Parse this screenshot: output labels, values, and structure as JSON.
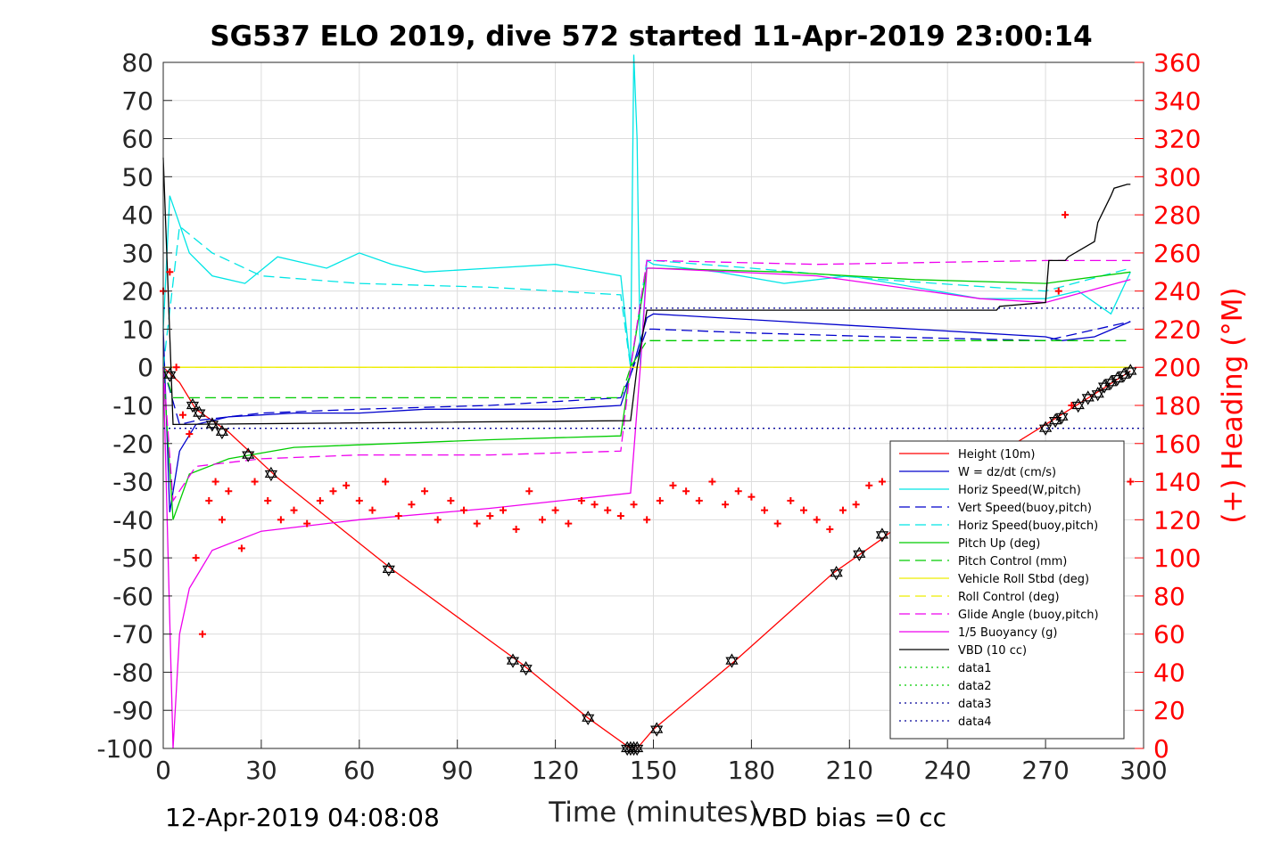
{
  "chart_data": {
    "type": "line",
    "title": "SG537 ELO 2019, dive 572 started 11-Apr-2019 23:00:14",
    "xlabel": "Time (minutes)",
    "ylabel_right": "(+) Heading (°M)",
    "xlim": [
      0,
      300
    ],
    "ylim": [
      -100,
      80
    ],
    "ylim_right": [
      0,
      360
    ],
    "xticks": [
      0,
      30,
      60,
      90,
      120,
      150,
      180,
      210,
      240,
      270,
      300
    ],
    "yticks": [
      -100,
      -90,
      -80,
      -70,
      -60,
      -50,
      -40,
      -30,
      -20,
      -10,
      0,
      10,
      20,
      30,
      40,
      50,
      60,
      70,
      80
    ],
    "yticks_right": [
      0,
      20,
      40,
      60,
      80,
      100,
      120,
      140,
      160,
      180,
      200,
      220,
      240,
      260,
      280,
      300,
      320,
      340,
      360
    ],
    "grid": true,
    "legend_position": "bottom-right",
    "footer_left": "12-Apr-2019 04:08:08",
    "footer_right": "VBD bias =0 cc",
    "colors": {
      "right_axis": "#ff0000",
      "heading": "#ff0000"
    },
    "series": [
      {
        "name": "Height (10m)",
        "color": "#ff0000",
        "style": "solid",
        "x": [
          0,
          5,
          10,
          20,
          35,
          70,
          110,
          130,
          143,
          145,
          150,
          175,
          205,
          220,
          240,
          255,
          270,
          285,
          296
        ],
        "y": [
          0,
          -4,
          -11,
          -17,
          -29,
          -53,
          -78,
          -92,
          -100,
          -100,
          -95,
          -77,
          -54,
          -45,
          -31,
          -23,
          -15,
          -7,
          -1
        ]
      },
      {
        "name": "W = dz/dt (cm/s)",
        "color": "#0000cc",
        "style": "solid",
        "x": [
          0,
          2,
          5,
          10,
          20,
          40,
          60,
          80,
          100,
          120,
          140,
          143,
          148,
          150,
          170,
          190,
          210,
          230,
          250,
          270,
          275,
          285,
          296
        ],
        "y": [
          10,
          -38,
          -22,
          -15,
          -13,
          -12,
          -12,
          -11,
          -11,
          -11,
          -10,
          -2,
          13,
          14,
          13,
          12,
          11,
          10,
          9,
          8,
          7,
          8,
          12
        ]
      },
      {
        "name": "Horiz Speed(W,pitch)",
        "color": "#00e5e5",
        "style": "solid",
        "x": [
          0,
          2,
          4,
          8,
          15,
          25,
          35,
          50,
          60,
          70,
          80,
          100,
          120,
          140,
          143,
          144,
          145,
          146,
          148,
          150,
          170,
          190,
          210,
          230,
          250,
          270,
          280,
          290,
          296
        ],
        "y": [
          10,
          45,
          40,
          30,
          24,
          22,
          29,
          26,
          30,
          27,
          25,
          26,
          27,
          24,
          0,
          82,
          60,
          0,
          28,
          27,
          25,
          22,
          24,
          21,
          18,
          18,
          20,
          14,
          25
        ]
      },
      {
        "name": "Vert Speed(buoy,pitch)",
        "color": "#0000cc",
        "style": "dashed",
        "x": [
          0,
          5,
          10,
          30,
          60,
          100,
          140,
          143,
          148,
          150,
          180,
          220,
          270,
          296
        ],
        "y": [
          0,
          -15,
          -14,
          -12,
          -11,
          -10,
          -8,
          -2,
          10,
          10,
          9,
          8,
          7,
          12
        ]
      },
      {
        "name": "Horiz Speed(buoy,pitch)",
        "color": "#00e5e5",
        "style": "dashed",
        "x": [
          0,
          5,
          15,
          30,
          60,
          100,
          140,
          143,
          148,
          150,
          180,
          220,
          270,
          296
        ],
        "y": [
          0,
          37,
          30,
          24,
          22,
          21,
          19,
          0,
          28,
          28,
          26,
          23,
          20,
          26
        ]
      },
      {
        "name": "Pitch Up (deg)",
        "color": "#00cc00",
        "style": "solid",
        "x": [
          0,
          3,
          8,
          20,
          40,
          70,
          100,
          140,
          143,
          148,
          150,
          190,
          230,
          270,
          296
        ],
        "y": [
          0,
          -40,
          -28,
          -24,
          -21,
          -20,
          -19,
          -18,
          0,
          26,
          26,
          25,
          23,
          22,
          25
        ]
      },
      {
        "name": "Pitch Control (mm)",
        "color": "#00cc00",
        "style": "dashed",
        "x": [
          0,
          3,
          10,
          140,
          143,
          148,
          150,
          296
        ],
        "y": [
          0,
          -8,
          -8,
          -8,
          0,
          7,
          7,
          7
        ]
      },
      {
        "name": "Vehicle Roll Stbd (deg)",
        "color": "#eeee00",
        "style": "solid",
        "x": [
          0,
          5,
          10,
          30,
          60,
          100,
          140,
          143,
          148,
          150,
          200,
          250,
          296
        ],
        "y": [
          0,
          0,
          0,
          0,
          0,
          0,
          0,
          0,
          0,
          0,
          0,
          0,
          0
        ]
      },
      {
        "name": "Roll Control (deg)",
        "color": "#eeee00",
        "style": "dashed",
        "x": [
          0,
          296
        ],
        "y": [
          0,
          0
        ]
      },
      {
        "name": "Glide Angle (buoy,pitch)",
        "color": "#ee00ee",
        "style": "dashed",
        "x": [
          0,
          3,
          10,
          30,
          60,
          100,
          140,
          143,
          148,
          150,
          200,
          270,
          296
        ],
        "y": [
          0,
          -35,
          -26,
          -24,
          -23,
          -23,
          -22,
          0,
          28,
          28,
          27,
          28,
          28
        ]
      },
      {
        "name": "1/5 Buoyancy (g)",
        "color": "#ee00ee",
        "style": "solid",
        "x": [
          0,
          3,
          5,
          8,
          15,
          30,
          60,
          100,
          143,
          146,
          148,
          150,
          200,
          250,
          270,
          296
        ],
        "y": [
          0,
          -100,
          -70,
          -58,
          -48,
          -43,
          -40,
          -37,
          -33,
          0,
          26,
          26,
          24,
          18,
          17,
          23
        ]
      },
      {
        "name": "VBD (10 cc)",
        "color": "#000000",
        "style": "solid",
        "x": [
          0,
          3,
          143,
          145,
          148,
          150,
          255,
          256,
          270,
          271,
          276,
          277,
          285,
          286,
          290,
          291,
          295,
          296
        ],
        "y": [
          55,
          -15,
          -14,
          0,
          15,
          15,
          15,
          16,
          17,
          28,
          28,
          29,
          33,
          38,
          45,
          47,
          48,
          48
        ]
      },
      {
        "name": "data1",
        "color": "#00cc00",
        "style": "dotted",
        "x": [],
        "y": []
      },
      {
        "name": "data2",
        "color": "#00cc00",
        "style": "dotted",
        "x": [],
        "y": []
      },
      {
        "name": "data3",
        "color": "#000099",
        "style": "dotted",
        "x": [
          0,
          300
        ],
        "y": [
          -16,
          -16
        ]
      },
      {
        "name": "data4",
        "color": "#000099",
        "style": "dotted",
        "x": [
          0,
          300
        ],
        "y": [
          15.5,
          15.5
        ]
      }
    ],
    "heading_series": {
      "color": "#ff0000",
      "marker": "+",
      "axis": "right",
      "x": [
        0,
        2,
        4,
        6,
        8,
        10,
        12,
        14,
        16,
        18,
        20,
        24,
        28,
        32,
        36,
        40,
        44,
        48,
        52,
        56,
        60,
        64,
        68,
        72,
        76,
        80,
        84,
        88,
        92,
        96,
        100,
        104,
        108,
        112,
        116,
        120,
        124,
        128,
        132,
        136,
        140,
        144,
        148,
        152,
        156,
        160,
        164,
        168,
        172,
        176,
        180,
        184,
        188,
        192,
        196,
        200,
        204,
        208,
        212,
        216,
        220,
        224,
        228,
        232,
        236,
        240,
        244,
        248,
        252,
        256,
        260,
        264,
        268,
        272,
        274,
        276,
        278,
        280,
        284,
        288,
        292,
        296
      ],
      "y": [
        240,
        250,
        200,
        175,
        165,
        100,
        60,
        130,
        140,
        120,
        135,
        105,
        140,
        130,
        120,
        125,
        118,
        130,
        135,
        138,
        130,
        125,
        140,
        122,
        128,
        135,
        120,
        130,
        125,
        118,
        122,
        125,
        115,
        135,
        120,
        125,
        118,
        130,
        128,
        125,
        122,
        128,
        120,
        130,
        138,
        135,
        130,
        140,
        128,
        135,
        132,
        125,
        118,
        130,
        125,
        120,
        115,
        125,
        128,
        138,
        140,
        145,
        138,
        130,
        125,
        132,
        128,
        140,
        135,
        130,
        128,
        122,
        118,
        150,
        240,
        280,
        180,
        150,
        130,
        120,
        110,
        140
      ]
    },
    "dive_markers": {
      "color": "#000000",
      "marker": "star",
      "x": [
        2,
        9,
        11,
        15,
        18,
        26,
        33,
        69,
        107,
        111,
        130,
        142,
        143,
        144,
        145,
        151,
        174,
        206,
        213,
        220,
        270,
        273,
        275,
        280,
        283,
        286,
        288,
        290,
        292,
        294,
        296
      ],
      "y": [
        -2,
        -10,
        -12,
        -15,
        -17,
        -23,
        -28,
        -53,
        -77,
        -79,
        -92,
        -100,
        -100,
        -100,
        -100,
        -95,
        -77,
        -54,
        -49,
        -44,
        -16,
        -14,
        -13,
        -10,
        -8,
        -7,
        -5,
        -4,
        -3,
        -2,
        -1
      ]
    }
  }
}
